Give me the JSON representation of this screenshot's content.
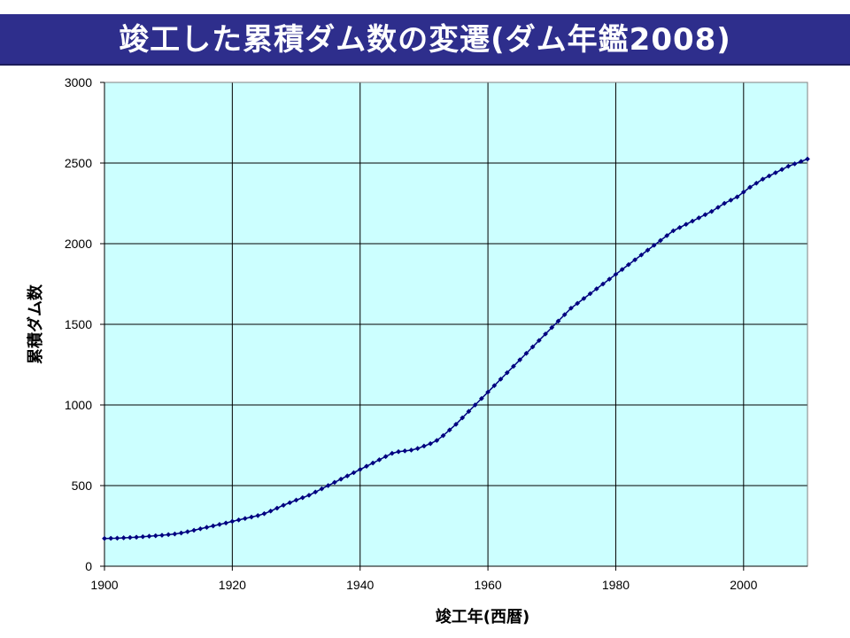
{
  "title": "竣工した累積ダム数の変遷(ダム年鑑2008)",
  "colors": {
    "title_bg": "#2e2e8c",
    "title_text": "#ffffff",
    "plot_bg": "#ccffff",
    "grid": "#000000",
    "series": "#000080"
  },
  "chart_data": {
    "type": "line",
    "xlabel": "竣工年(西暦)",
    "ylabel": "累積ダム数",
    "xlim": [
      1900,
      2010
    ],
    "ylim": [
      0,
      3000
    ],
    "x_ticks": [
      1900,
      1920,
      1940,
      1960,
      1980,
      2000
    ],
    "y_ticks": [
      0,
      500,
      1000,
      1500,
      2000,
      2500,
      3000
    ],
    "grid": true,
    "legend": "none",
    "marker": "diamond",
    "series": [
      {
        "x": [
          1900,
          1901,
          1902,
          1903,
          1904,
          1905,
          1906,
          1907,
          1908,
          1909,
          1910,
          1911,
          1912,
          1913,
          1914,
          1915,
          1916,
          1917,
          1918,
          1919,
          1920,
          1921,
          1922,
          1923,
          1924,
          1925,
          1926,
          1927,
          1928,
          1929,
          1930,
          1931,
          1932,
          1933,
          1934,
          1935,
          1936,
          1937,
          1938,
          1939,
          1940,
          1941,
          1942,
          1943,
          1944,
          1945,
          1946,
          1947,
          1948,
          1949,
          1950,
          1951,
          1952,
          1953,
          1954,
          1955,
          1956,
          1957,
          1958,
          1959,
          1960,
          1961,
          1962,
          1963,
          1964,
          1965,
          1966,
          1967,
          1968,
          1969,
          1970,
          1971,
          1972,
          1973,
          1974,
          1975,
          1976,
          1977,
          1978,
          1979,
          1980,
          1981,
          1982,
          1983,
          1984,
          1985,
          1986,
          1987,
          1988,
          1989,
          1990,
          1991,
          1992,
          1993,
          1994,
          1995,
          1996,
          1997,
          1998,
          1999,
          2000,
          2001,
          2002,
          2003,
          2004,
          2005,
          2006,
          2007,
          2008,
          2009,
          2010
        ],
        "values": [
          172,
          173,
          174,
          176,
          178,
          180,
          183,
          186,
          189,
          192,
          196,
          200,
          206,
          214,
          223,
          232,
          241,
          250,
          259,
          268,
          278,
          287,
          296,
          305,
          314,
          326,
          342,
          360,
          378,
          394,
          410,
          425,
          440,
          460,
          480,
          500,
          520,
          540,
          560,
          580,
          600,
          620,
          640,
          660,
          680,
          700,
          710,
          715,
          720,
          730,
          745,
          760,
          780,
          810,
          845,
          880,
          920,
          960,
          1000,
          1040,
          1080,
          1120,
          1160,
          1200,
          1240,
          1280,
          1320,
          1360,
          1400,
          1440,
          1480,
          1520,
          1560,
          1600,
          1630,
          1660,
          1690,
          1720,
          1750,
          1780,
          1810,
          1840,
          1870,
          1900,
          1930,
          1960,
          1990,
          2020,
          2050,
          2080,
          2100,
          2120,
          2140,
          2160,
          2180,
          2200,
          2225,
          2250,
          2270,
          2290,
          2320,
          2350,
          2375,
          2400,
          2420,
          2440,
          2460,
          2480,
          2495,
          2510,
          2525
        ]
      }
    ]
  }
}
